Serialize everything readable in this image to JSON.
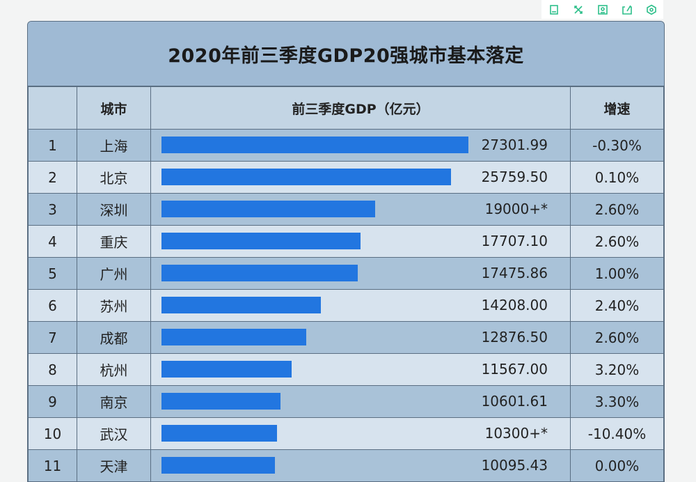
{
  "toolbar": [
    {
      "name": "bookmark-icon"
    },
    {
      "name": "expand-icon"
    },
    {
      "name": "image-icon"
    },
    {
      "name": "share-icon"
    },
    {
      "name": "settings-icon"
    }
  ],
  "title": "2020年前三季度GDP20强城市基本落定",
  "headers": {
    "rank": "",
    "city": "城市",
    "gdp": "前三季度GDP（亿元）",
    "growth": "增速"
  },
  "chart_data": {
    "type": "bar",
    "title": "2020年前三季度GDP20强城市基本落定",
    "orientation": "horizontal",
    "xlabel": "",
    "ylabel": "",
    "categories": [
      "上海",
      "北京",
      "深圳",
      "重庆",
      "广州",
      "苏州",
      "成都",
      "杭州",
      "南京",
      "武汉",
      "天津"
    ],
    "ranks": [
      "1",
      "2",
      "3",
      "4",
      "5",
      "6",
      "7",
      "8",
      "9",
      "10",
      "11"
    ],
    "values": [
      27301.99,
      25759.5,
      19000,
      17707.1,
      17475.86,
      14208.0,
      12876.5,
      11567.0,
      10601.61,
      10300,
      10095.43
    ],
    "value_labels": [
      "27301.99",
      "25759.50",
      "19000+*",
      "17707.10",
      "17475.86",
      "14208.00",
      "12876.50",
      "11567.00",
      "10601.61",
      "10300+*",
      "10095.43"
    ],
    "growth": [
      "-0.30%",
      "0.10%",
      "2.60%",
      "2.60%",
      "1.00%",
      "2.40%",
      "2.60%",
      "3.20%",
      "3.30%",
      "-10.40%",
      "0.00%"
    ],
    "bar_color": "#2276e0",
    "xlim": [
      0,
      27301.99
    ]
  }
}
